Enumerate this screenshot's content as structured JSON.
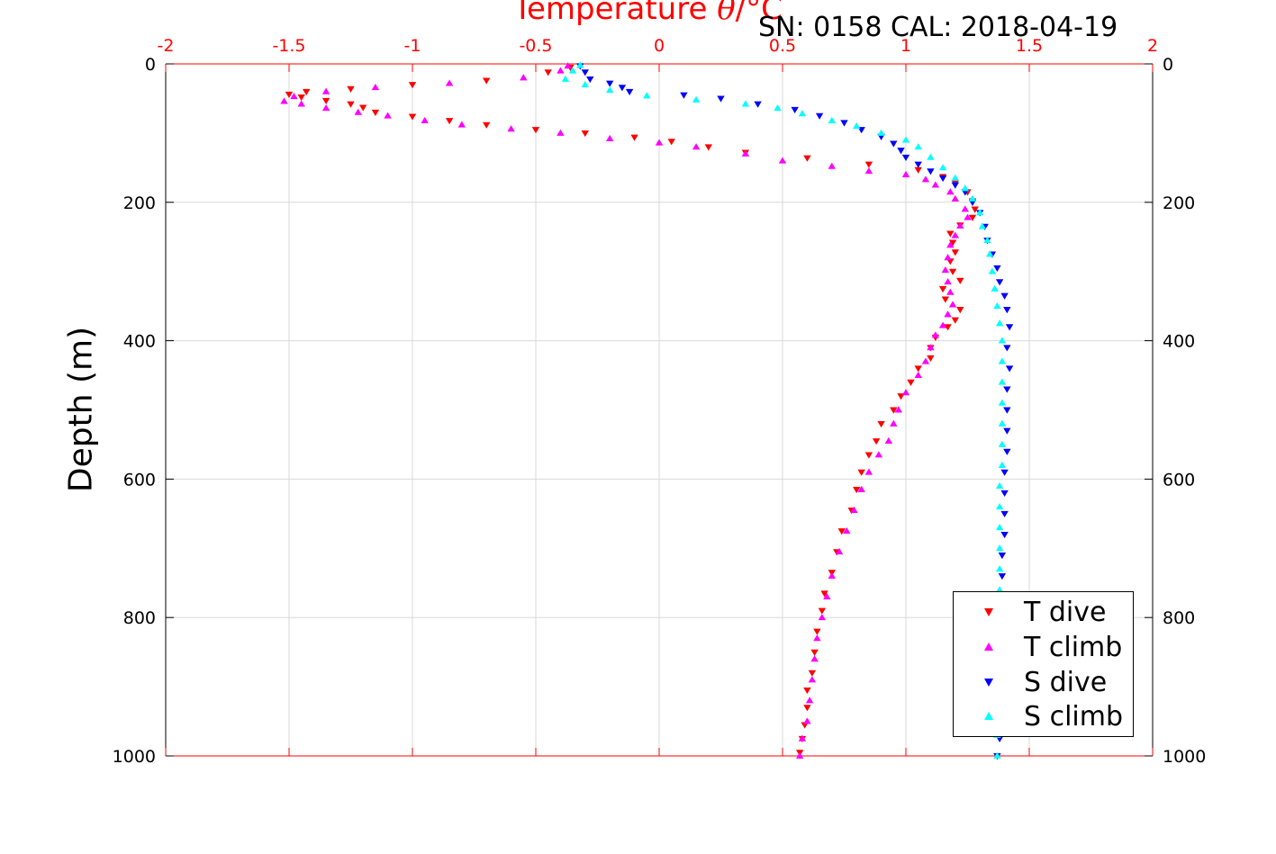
{
  "chart_data": {
    "type": "scatter",
    "title": "Temperature θ/°C",
    "title_parts": {
      "prefix": "Temperature ",
      "symbol": "θ",
      "suffix": "/°C"
    },
    "annotation": "SN: 0158  CAL: 2018-04-19",
    "xlabel": "Temperature θ/°C",
    "ylabel": "Depth (m)",
    "xlim": [
      -2,
      2
    ],
    "ylim": [
      0,
      1000
    ],
    "y_reversed": true,
    "x_axis_position": "top",
    "xticks": [
      -2,
      -1.5,
      -1,
      -0.5,
      0,
      0.5,
      1,
      1.5,
      2
    ],
    "xtick_labels": [
      "-2",
      "-1.5",
      "-1",
      "-0.5",
      "0",
      "0.5",
      "1",
      "1.5",
      "2"
    ],
    "yticks": [
      0,
      200,
      400,
      600,
      800,
      1000
    ],
    "ytick_labels": [
      "0",
      "200",
      "400",
      "600",
      "800",
      "1000"
    ],
    "y_axis_both_sides": true,
    "grid": true,
    "legend_position": "bottom-right",
    "colors": {
      "axis_x": "#ff0000",
      "grid": "#d9d9d9"
    },
    "series": [
      {
        "name": "T dive",
        "color": "#ff0000",
        "marker": "triangle-down",
        "points": [
          [
            -0.36,
            5
          ],
          [
            -0.45,
            12
          ],
          [
            -0.7,
            24
          ],
          [
            -1.0,
            30
          ],
          [
            -1.25,
            36
          ],
          [
            -1.43,
            40
          ],
          [
            -1.5,
            44
          ],
          [
            -1.45,
            48
          ],
          [
            -1.35,
            53
          ],
          [
            -1.25,
            58
          ],
          [
            -1.2,
            63
          ],
          [
            -1.15,
            70
          ],
          [
            -1.0,
            76
          ],
          [
            -0.85,
            82
          ],
          [
            -0.7,
            88
          ],
          [
            -0.5,
            95
          ],
          [
            -0.3,
            100
          ],
          [
            -0.1,
            106
          ],
          [
            0.05,
            112
          ],
          [
            0.2,
            120
          ],
          [
            0.35,
            128
          ],
          [
            0.6,
            136
          ],
          [
            0.85,
            145
          ],
          [
            1.05,
            153
          ],
          [
            1.15,
            163
          ],
          [
            1.2,
            172
          ],
          [
            1.25,
            185
          ],
          [
            1.27,
            198
          ],
          [
            1.28,
            210
          ],
          [
            1.27,
            222
          ],
          [
            1.22,
            233
          ],
          [
            1.18,
            245
          ],
          [
            1.19,
            258
          ],
          [
            1.2,
            272
          ],
          [
            1.18,
            285
          ],
          [
            1.19,
            300
          ],
          [
            1.22,
            313
          ],
          [
            1.15,
            325
          ],
          [
            1.16,
            340
          ],
          [
            1.22,
            355
          ],
          [
            1.2,
            370
          ],
          [
            1.17,
            380
          ],
          [
            1.12,
            395
          ],
          [
            1.1,
            410
          ],
          [
            1.1,
            425
          ],
          [
            1.05,
            440
          ],
          [
            1.02,
            460
          ],
          [
            0.98,
            480
          ],
          [
            0.95,
            500
          ],
          [
            0.9,
            520
          ],
          [
            0.88,
            545
          ],
          [
            0.85,
            565
          ],
          [
            0.82,
            590
          ],
          [
            0.8,
            615
          ],
          [
            0.78,
            645
          ],
          [
            0.74,
            675
          ],
          [
            0.72,
            705
          ],
          [
            0.7,
            735
          ],
          [
            0.67,
            765
          ],
          [
            0.66,
            790
          ],
          [
            0.64,
            820
          ],
          [
            0.63,
            850
          ],
          [
            0.62,
            880
          ],
          [
            0.6,
            905
          ],
          [
            0.6,
            930
          ],
          [
            0.59,
            955
          ],
          [
            0.58,
            975
          ],
          [
            0.57,
            995
          ]
        ]
      },
      {
        "name": "T climb",
        "color": "#ff00ff",
        "marker": "triangle-up",
        "points": [
          [
            -0.37,
            3
          ],
          [
            -0.4,
            10
          ],
          [
            -0.55,
            20
          ],
          [
            -0.85,
            28
          ],
          [
            -1.15,
            34
          ],
          [
            -1.35,
            40
          ],
          [
            -1.48,
            47
          ],
          [
            -1.52,
            54
          ],
          [
            -1.45,
            58
          ],
          [
            -1.35,
            64
          ],
          [
            -1.22,
            70
          ],
          [
            -1.1,
            75
          ],
          [
            -0.95,
            82
          ],
          [
            -0.8,
            88
          ],
          [
            -0.6,
            94
          ],
          [
            -0.4,
            100
          ],
          [
            -0.2,
            108
          ],
          [
            0.0,
            114
          ],
          [
            0.15,
            120
          ],
          [
            0.35,
            130
          ],
          [
            0.5,
            140
          ],
          [
            0.7,
            148
          ],
          [
            0.85,
            155
          ],
          [
            1.0,
            160
          ],
          [
            1.08,
            167
          ],
          [
            1.12,
            175
          ],
          [
            1.18,
            185
          ],
          [
            1.2,
            195
          ],
          [
            1.24,
            210
          ],
          [
            1.25,
            222
          ],
          [
            1.22,
            234
          ],
          [
            1.2,
            248
          ],
          [
            1.18,
            262
          ],
          [
            1.17,
            280
          ],
          [
            1.16,
            298
          ],
          [
            1.17,
            315
          ],
          [
            1.18,
            330
          ],
          [
            1.19,
            348
          ],
          [
            1.17,
            362
          ],
          [
            1.15,
            378
          ],
          [
            1.12,
            392
          ],
          [
            1.1,
            410
          ],
          [
            1.08,
            430
          ],
          [
            1.05,
            450
          ],
          [
            1.0,
            475
          ],
          [
            0.97,
            500
          ],
          [
            0.95,
            520
          ],
          [
            0.93,
            545
          ],
          [
            0.89,
            565
          ],
          [
            0.85,
            590
          ],
          [
            0.82,
            615
          ],
          [
            0.79,
            645
          ],
          [
            0.76,
            675
          ],
          [
            0.73,
            705
          ],
          [
            0.7,
            740
          ],
          [
            0.68,
            770
          ],
          [
            0.66,
            800
          ],
          [
            0.64,
            830
          ],
          [
            0.63,
            860
          ],
          [
            0.62,
            890
          ],
          [
            0.61,
            920
          ],
          [
            0.6,
            950
          ],
          [
            0.58,
            975
          ],
          [
            0.57,
            1000
          ]
        ]
      },
      {
        "name": "S dive",
        "color": "#0000ff",
        "marker": "triangle-down",
        "points": [
          [
            -0.32,
            3
          ],
          [
            -0.3,
            12
          ],
          [
            -0.28,
            22
          ],
          [
            -0.2,
            28
          ],
          [
            -0.15,
            34
          ],
          [
            -0.12,
            40
          ],
          [
            0.1,
            45
          ],
          [
            0.25,
            50
          ],
          [
            0.4,
            58
          ],
          [
            0.55,
            66
          ],
          [
            0.65,
            75
          ],
          [
            0.75,
            85
          ],
          [
            0.82,
            95
          ],
          [
            0.9,
            105
          ],
          [
            0.95,
            115
          ],
          [
            0.98,
            125
          ],
          [
            1.0,
            135
          ],
          [
            1.05,
            145
          ],
          [
            1.1,
            155
          ],
          [
            1.15,
            165
          ],
          [
            1.2,
            175
          ],
          [
            1.24,
            185
          ],
          [
            1.27,
            200
          ],
          [
            1.3,
            215
          ],
          [
            1.32,
            235
          ],
          [
            1.33,
            255
          ],
          [
            1.35,
            275
          ],
          [
            1.37,
            295
          ],
          [
            1.38,
            315
          ],
          [
            1.4,
            335
          ],
          [
            1.41,
            355
          ],
          [
            1.42,
            380
          ],
          [
            1.41,
            410
          ],
          [
            1.42,
            440
          ],
          [
            1.41,
            470
          ],
          [
            1.41,
            500
          ],
          [
            1.41,
            530
          ],
          [
            1.41,
            560
          ],
          [
            1.4,
            590
          ],
          [
            1.4,
            620
          ],
          [
            1.4,
            650
          ],
          [
            1.4,
            680
          ],
          [
            1.39,
            710
          ],
          [
            1.39,
            740
          ],
          [
            1.39,
            770
          ],
          [
            1.39,
            800
          ],
          [
            1.38,
            830
          ],
          [
            1.38,
            860
          ],
          [
            1.38,
            890
          ],
          [
            1.38,
            920
          ],
          [
            1.38,
            950
          ],
          [
            1.38,
            975
          ],
          [
            1.37,
            1000
          ]
        ]
      },
      {
        "name": "S climb",
        "color": "#00ffff",
        "marker": "triangle-up",
        "points": [
          [
            -0.32,
            2
          ],
          [
            -0.35,
            10
          ],
          [
            -0.38,
            22
          ],
          [
            -0.3,
            30
          ],
          [
            -0.2,
            38
          ],
          [
            -0.05,
            46
          ],
          [
            0.15,
            52
          ],
          [
            0.35,
            58
          ],
          [
            0.48,
            64
          ],
          [
            0.58,
            72
          ],
          [
            0.7,
            82
          ],
          [
            0.8,
            90
          ],
          [
            0.9,
            100
          ],
          [
            1.0,
            110
          ],
          [
            1.05,
            120
          ],
          [
            1.1,
            135
          ],
          [
            1.15,
            150
          ],
          [
            1.2,
            165
          ],
          [
            1.24,
            180
          ],
          [
            1.27,
            195
          ],
          [
            1.3,
            215
          ],
          [
            1.31,
            235
          ],
          [
            1.33,
            255
          ],
          [
            1.34,
            275
          ],
          [
            1.35,
            300
          ],
          [
            1.36,
            325
          ],
          [
            1.37,
            350
          ],
          [
            1.38,
            375
          ],
          [
            1.39,
            400
          ],
          [
            1.39,
            430
          ],
          [
            1.39,
            460
          ],
          [
            1.39,
            490
          ],
          [
            1.39,
            520
          ],
          [
            1.39,
            550
          ],
          [
            1.39,
            580
          ],
          [
            1.38,
            610
          ],
          [
            1.38,
            640
          ],
          [
            1.38,
            670
          ],
          [
            1.38,
            700
          ],
          [
            1.38,
            730
          ],
          [
            1.38,
            760
          ],
          [
            1.37,
            790
          ],
          [
            1.37,
            820
          ],
          [
            1.37,
            850
          ],
          [
            1.37,
            880
          ],
          [
            1.37,
            910
          ],
          [
            1.37,
            940
          ],
          [
            1.37,
            970
          ],
          [
            1.37,
            1000
          ]
        ]
      }
    ]
  }
}
